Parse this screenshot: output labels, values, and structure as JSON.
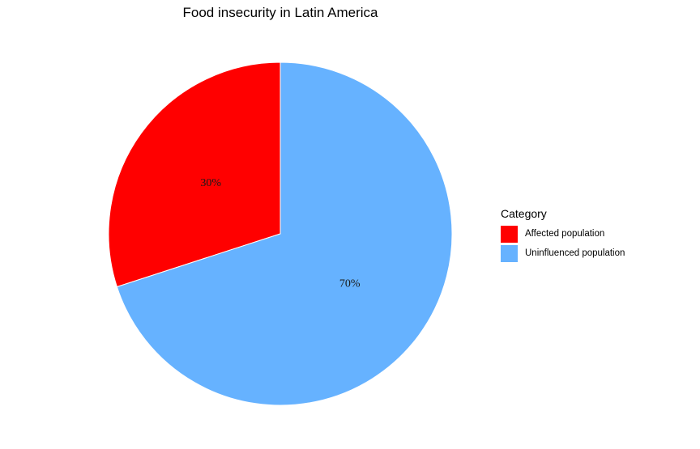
{
  "chart_data": {
    "type": "pie",
    "title": "Food insecurity in Latin America",
    "legend_title": "Category",
    "legend_position": "right",
    "slices": [
      {
        "name": "Affected population",
        "value": 30,
        "label": "30%",
        "color": "#FF0000"
      },
      {
        "name": "Uninfluenced population",
        "value": 70,
        "label": "70%",
        "color": "#66B2FF"
      }
    ]
  }
}
